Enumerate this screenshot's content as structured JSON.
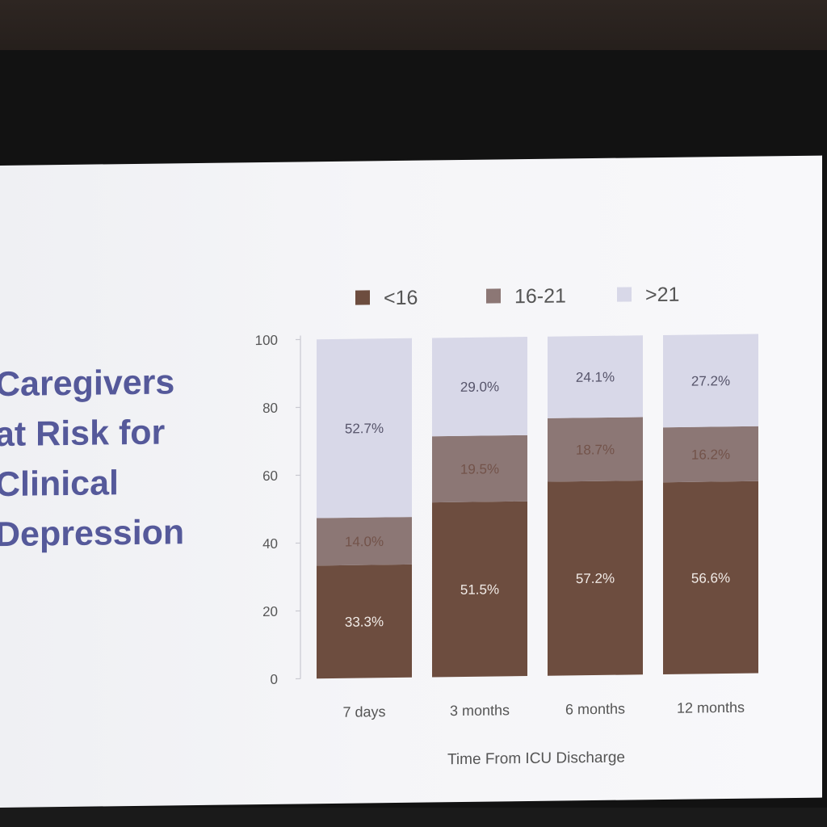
{
  "slide": {
    "title_lines": [
      "Caregivers",
      "at Risk for",
      "Clinical",
      "Depression"
    ]
  },
  "chart_data": {
    "type": "bar",
    "stacked": true,
    "categories": [
      "7 days",
      "3 months",
      "6 months",
      "12 months"
    ],
    "series": [
      {
        "name": "<16",
        "values": [
          33.3,
          51.5,
          57.2,
          56.6
        ],
        "labels": [
          "33.3%",
          "51.5%",
          "57.2%",
          "56.6%"
        ],
        "color": "#6d4d3f"
      },
      {
        "name": "16-21",
        "values": [
          14.0,
          19.5,
          18.7,
          16.2
        ],
        "labels": [
          "14.0%",
          "19.5%",
          "18.7%",
          "16.2%"
        ],
        "color": "#8c7775"
      },
      {
        "name": ">21",
        "values": [
          52.7,
          29.0,
          24.1,
          27.2
        ],
        "labels": [
          "52.7%",
          "29.0%",
          "24.1%",
          "27.2%"
        ],
        "color": "#d8d8e8"
      }
    ],
    "xlabel": "Time From ICU Discharge",
    "ylabel": "",
    "ylim": [
      0,
      100
    ],
    "yticks": [
      0,
      20,
      40,
      60,
      80,
      100
    ],
    "legend_position": "top",
    "grid": false
  }
}
